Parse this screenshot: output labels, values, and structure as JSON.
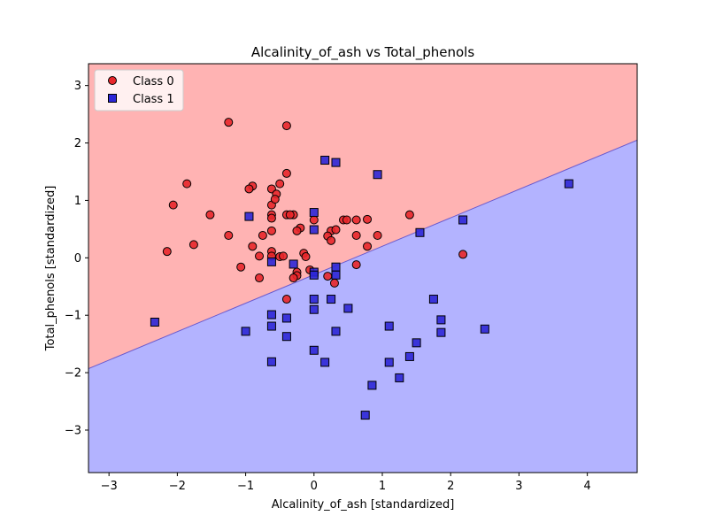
{
  "chart_data": {
    "type": "scatter",
    "title": "Alcalinity_of_ash vs Total_phenols",
    "xlabel": "Alcalinity_of_ash [standardized]",
    "ylabel": "Total_phenols [standardized]",
    "xlim": [
      -3.3,
      4.73
    ],
    "ylim": [
      -3.74,
      3.38
    ],
    "x_ticks": [
      -3,
      -2,
      -1,
      0,
      1,
      2,
      3,
      4
    ],
    "y_ticks": [
      -3,
      -2,
      -1,
      0,
      1,
      2,
      3
    ],
    "grid": false,
    "legend_position": "top-left",
    "decision_boundary": {
      "points": [
        [
          -3.3,
          -1.93
        ],
        [
          4.73,
          2.05
        ]
      ],
      "above_region": "Class 0",
      "below_region": "Class 1"
    },
    "region_colors": {
      "Class 0": "#ffb3b3",
      "Class 1": "#b3b3ff"
    },
    "marker_colors": {
      "Class 0": "#e8262a",
      "Class 1": "#2c26d6"
    },
    "series": [
      {
        "name": "Class 0",
        "marker": "circle",
        "points": [
          [
            -1.25,
            2.36
          ],
          [
            -0.4,
            2.3
          ],
          [
            -1.86,
            1.29
          ],
          [
            -0.4,
            1.47
          ],
          [
            -0.5,
            1.29
          ],
          [
            -0.9,
            1.25
          ],
          [
            -0.95,
            1.2
          ],
          [
            -0.62,
            1.2
          ],
          [
            -0.55,
            1.11
          ],
          [
            -2.06,
            0.92
          ],
          [
            -0.62,
            0.92
          ],
          [
            -0.57,
            1.02
          ],
          [
            -1.52,
            0.75
          ],
          [
            -0.62,
            0.75
          ],
          [
            -0.4,
            0.75
          ],
          [
            -0.3,
            0.75
          ],
          [
            -0.62,
            0.69
          ],
          [
            -0.35,
            0.75
          ],
          [
            0.0,
            0.66
          ],
          [
            0.43,
            0.66
          ],
          [
            0.48,
            0.66
          ],
          [
            0.62,
            0.66
          ],
          [
            0.78,
            0.67
          ],
          [
            1.4,
            0.75
          ],
          [
            -0.2,
            0.52
          ],
          [
            -0.25,
            0.47
          ],
          [
            -0.62,
            0.47
          ],
          [
            0.25,
            0.47
          ],
          [
            0.32,
            0.49
          ],
          [
            -1.25,
            0.39
          ],
          [
            -0.75,
            0.39
          ],
          [
            0.2,
            0.38
          ],
          [
            0.25,
            0.3
          ],
          [
            0.62,
            0.39
          ],
          [
            0.93,
            0.39
          ],
          [
            -0.9,
            0.2
          ],
          [
            -1.76,
            0.23
          ],
          [
            0.78,
            0.2
          ],
          [
            -2.15,
            0.11
          ],
          [
            -0.62,
            0.11
          ],
          [
            -0.8,
            0.03
          ],
          [
            -0.62,
            0.03
          ],
          [
            -0.5,
            0.02
          ],
          [
            -0.45,
            0.03
          ],
          [
            -0.15,
            0.08
          ],
          [
            -0.12,
            0.02
          ],
          [
            -1.07,
            -0.16
          ],
          [
            0.62,
            -0.12
          ],
          [
            -0.06,
            -0.21
          ],
          [
            -0.25,
            -0.25
          ],
          [
            -0.25,
            -0.31
          ],
          [
            -0.3,
            -0.35
          ],
          [
            0.2,
            -0.32
          ],
          [
            -0.8,
            -0.35
          ],
          [
            0.3,
            -0.44
          ],
          [
            -0.4,
            -0.72
          ],
          [
            2.18,
            0.06
          ]
        ]
      },
      {
        "name": "Class 1",
        "marker": "square",
        "points": [
          [
            0.16,
            1.7
          ],
          [
            0.32,
            1.66
          ],
          [
            0.93,
            1.45
          ],
          [
            3.73,
            1.29
          ],
          [
            -0.95,
            0.72
          ],
          [
            0.0,
            0.79
          ],
          [
            2.18,
            0.66
          ],
          [
            0.0,
            0.49
          ],
          [
            1.55,
            0.44
          ],
          [
            -0.62,
            -0.07
          ],
          [
            -0.3,
            -0.11
          ],
          [
            0.32,
            -0.16
          ],
          [
            0.0,
            -0.25
          ],
          [
            0.0,
            -0.3
          ],
          [
            0.32,
            -0.3
          ],
          [
            0.0,
            -0.72
          ],
          [
            0.25,
            -0.72
          ],
          [
            0.0,
            -0.9
          ],
          [
            0.5,
            -0.88
          ],
          [
            1.75,
            -0.72
          ],
          [
            -0.62,
            -0.99
          ],
          [
            -0.4,
            -1.05
          ],
          [
            1.86,
            -1.08
          ],
          [
            -2.33,
            -1.12
          ],
          [
            -0.62,
            -1.19
          ],
          [
            1.1,
            -1.19
          ],
          [
            -1.0,
            -1.28
          ],
          [
            0.32,
            -1.28
          ],
          [
            2.5,
            -1.24
          ],
          [
            1.86,
            -1.3
          ],
          [
            -0.4,
            -1.37
          ],
          [
            1.5,
            -1.48
          ],
          [
            0.0,
            -1.61
          ],
          [
            1.4,
            -1.72
          ],
          [
            -0.62,
            -1.81
          ],
          [
            0.16,
            -1.82
          ],
          [
            1.1,
            -1.82
          ],
          [
            1.25,
            -2.09
          ],
          [
            0.85,
            -2.22
          ],
          [
            0.75,
            -2.74
          ]
        ]
      }
    ]
  }
}
